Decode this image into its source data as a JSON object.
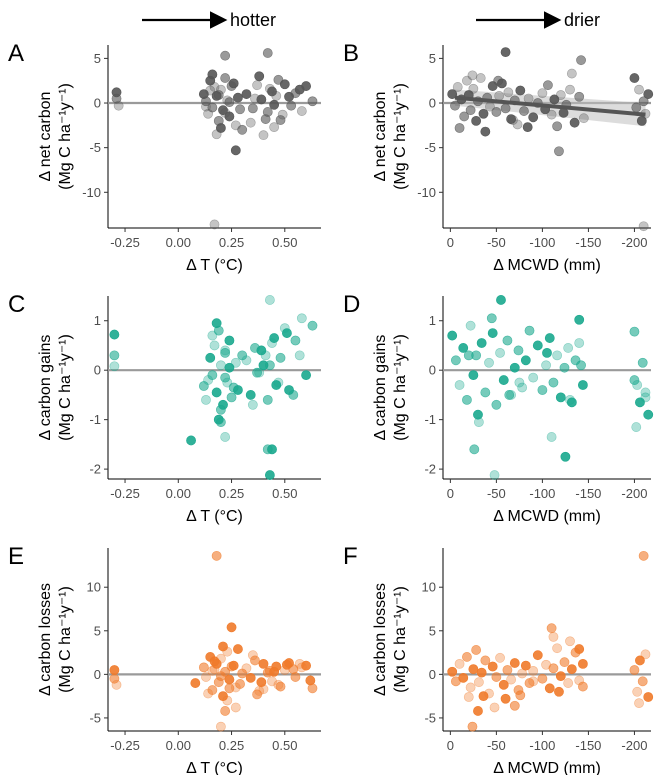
{
  "headers": {
    "left": "hotter",
    "right": "drier"
  },
  "colors": {
    "net": "#555555",
    "gains": "#1aa88e",
    "losses": "#f07a2a",
    "zero_line": "#9a9a9a",
    "trend": "#555555",
    "ribbon": "#bfbfbf"
  },
  "chart_data": [
    {
      "panel": "A",
      "type": "scatter",
      "color_key": "net",
      "xlabel": "Δ T (°C)",
      "ylabel_line1": "Δ net carbon",
      "ylabel_line2": "(Mg C ha⁻¹y⁻¹)",
      "xlim": [
        -0.33,
        0.67
      ],
      "ylim": [
        -14.0,
        6.5
      ],
      "xticks": [
        -0.25,
        0,
        0.25,
        0.5
      ],
      "xticklabels": [
        "-0.25",
        "0.00",
        "0.25",
        "0.50"
      ],
      "yticks": [
        5,
        0,
        -5,
        -10
      ],
      "yticklabels": [
        "5",
        "0",
        "-5",
        "-10"
      ],
      "zero_line": 0,
      "x": [
        -0.29,
        -0.29,
        -0.28,
        0.12,
        0.13,
        0.14,
        0.15,
        0.16,
        0.17,
        0.18,
        0.19,
        0.2,
        0.21,
        0.22,
        0.23,
        0.24,
        0.25,
        0.27,
        0.28,
        0.3,
        0.13,
        0.16,
        0.19,
        0.22,
        0.26,
        0.29,
        0.15,
        0.2,
        0.24,
        0.18,
        0.32,
        0.35,
        0.37,
        0.39,
        0.41,
        0.43,
        0.45,
        0.47,
        0.49,
        0.52,
        0.55,
        0.58,
        0.6,
        0.63,
        0.34,
        0.38,
        0.42,
        0.46,
        0.5,
        0.53,
        0.4,
        0.44,
        0.48,
        0.36,
        0.57,
        0.42,
        0.17,
        0.27,
        0.22,
        0.45
      ],
      "y": [
        1.2,
        0.5,
        -0.3,
        1.0,
        0.2,
        -1.2,
        2.5,
        -0.5,
        1.8,
        0.8,
        -2.0,
        1.5,
        -0.8,
        2.8,
        0.3,
        -1.5,
        1.9,
        -2.5,
        0.6,
        -3.0,
        -0.4,
        3.2,
        0.9,
        -1.1,
        2.2,
        -0.7,
        1.4,
        -2.8,
        0.1,
        -3.5,
        1.0,
        -0.6,
        2.0,
        0.4,
        -1.8,
        1.6,
        -0.2,
        2.6,
        -1.3,
        0.7,
        1.1,
        -0.9,
        1.9,
        0.2,
        -2.2,
        3.0,
        -1.0,
        0.8,
        2.1,
        -0.3,
        -3.6,
        1.3,
        -1.9,
        0.5,
        1.5,
        5.6,
        -13.6,
        -5.3,
        5.3,
        -2.7
      ]
    },
    {
      "panel": "B",
      "type": "scatter",
      "color_key": "net",
      "xlabel": "Δ MCWD (mm)",
      "ylabel_line1": "Δ net carbon",
      "ylabel_line2": "(Mg C ha⁻¹y⁻¹)",
      "xlim": [
        8,
        -218
      ],
      "ylim": [
        -14.0,
        6.5
      ],
      "xticks": [
        0,
        -50,
        -100,
        -150,
        -200
      ],
      "xticklabels": [
        "0",
        "-50",
        "-100",
        "-150",
        "-200"
      ],
      "yticks": [
        5,
        0,
        -5,
        -10
      ],
      "yticklabels": [
        "5",
        "0",
        "-5",
        "-10"
      ],
      "zero_line": 0,
      "trend": {
        "x": [
          -5,
          -212
        ],
        "y": [
          0.6,
          -1.3
        ],
        "band": [
          0.9,
          1.3
        ]
      },
      "x": [
        -2,
        -5,
        -8,
        -12,
        -15,
        -18,
        -20,
        -22,
        -25,
        -28,
        -30,
        -33,
        -36,
        -40,
        -43,
        -46,
        -50,
        -53,
        -56,
        -60,
        -63,
        -66,
        -70,
        -73,
        -76,
        -80,
        -85,
        -90,
        -95,
        -100,
        -103,
        -106,
        -110,
        -113,
        -116,
        -120,
        -123,
        -126,
        -130,
        -135,
        -140,
        -145,
        -200,
        -202,
        -205,
        -208,
        -210,
        -212,
        -215,
        -10,
        -24,
        -38,
        -52,
        -68,
        -84,
        -118,
        -132,
        -60,
        -142,
        -210
      ],
      "y": [
        1.0,
        -0.3,
        1.8,
        0.4,
        -1.5,
        2.5,
        0.9,
        -0.8,
        1.6,
        -2.0,
        0.2,
        2.8,
        -1.2,
        0.6,
        -0.4,
        1.9,
        -1.0,
        0.8,
        2.2,
        -0.6,
        1.2,
        -1.8,
        0.3,
        -2.4,
        1.4,
        -0.9,
        0.5,
        -1.6,
        0.0,
        1.1,
        -0.7,
        2.0,
        -1.3,
        0.4,
        -2.6,
        0.9,
        -1.1,
        -0.2,
        1.5,
        -2.2,
        0.7,
        -1.7,
        2.8,
        -0.5,
        1.5,
        -2.0,
        0.2,
        -1.2,
        1.0,
        -2.8,
        3.1,
        -3.2,
        2.5,
        -1.9,
        -2.7,
        -5.4,
        3.3,
        5.7,
        4.8,
        -13.8
      ]
    },
    {
      "panel": "C",
      "type": "scatter",
      "color_key": "gains",
      "xlabel": "Δ T (°C)",
      "ylabel_line1": "Δ carbon gains",
      "ylabel_line2": "(Mg C ha⁻¹y⁻¹)",
      "xlim": [
        -0.33,
        0.67
      ],
      "ylim": [
        -2.2,
        1.5
      ],
      "xticks": [
        -0.25,
        0,
        0.25,
        0.5
      ],
      "xticklabels": [
        "-0.25",
        "0.00",
        "0.25",
        "0.50"
      ],
      "yticks": [
        1,
        0,
        -1,
        -2
      ],
      "yticklabels": [
        "1",
        "0",
        "-1",
        "-2"
      ],
      "zero_line": 0,
      "x": [
        -0.3,
        -0.3,
        -0.3,
        0.06,
        0.12,
        0.13,
        0.15,
        0.16,
        0.17,
        0.18,
        0.19,
        0.2,
        0.21,
        0.22,
        0.23,
        0.24,
        0.25,
        0.27,
        0.28,
        0.3,
        0.14,
        0.18,
        0.2,
        0.22,
        0.24,
        0.26,
        0.16,
        0.19,
        0.22,
        0.32,
        0.34,
        0.36,
        0.38,
        0.4,
        0.42,
        0.44,
        0.46,
        0.48,
        0.5,
        0.52,
        0.55,
        0.57,
        0.6,
        0.63,
        0.35,
        0.39,
        0.43,
        0.47,
        0.51,
        0.54,
        0.41,
        0.45,
        0.37,
        0.58,
        0.44,
        0.2,
        0.43,
        0.43,
        0.42,
        0.22
      ],
      "y": [
        0.72,
        0.3,
        0.08,
        -1.42,
        -0.32,
        -0.6,
        0.25,
        -0.1,
        0.5,
        -0.45,
        0.8,
        0.1,
        -0.7,
        0.35,
        -0.25,
        0.6,
        -0.55,
        0.15,
        -0.4,
        0.3,
        -0.2,
        0.95,
        -0.8,
        0.4,
        0.05,
        -0.35,
        0.7,
        -1.0,
        -0.15,
        0.2,
        -0.5,
        0.45,
        -0.05,
        0.1,
        -0.6,
        0.55,
        -0.3,
        0.25,
        0.85,
        -0.4,
        0.6,
        0.3,
        -0.1,
        0.9,
        -0.7,
        0.4,
        0.1,
        -0.25,
        0.75,
        -0.5,
        0.3,
        0.65,
        -0.05,
        1.05,
        -1.6,
        -1.05,
        1.42,
        -2.12,
        -1.6,
        -1.35
      ]
    },
    {
      "panel": "D",
      "type": "scatter",
      "color_key": "gains",
      "xlabel": "Δ MCWD (mm)",
      "ylabel_line1": "Δ carbon gains",
      "ylabel_line2": "(Mg C ha⁻¹y⁻¹)",
      "xlim": [
        8,
        -218
      ],
      "ylim": [
        -2.2,
        1.5
      ],
      "xticks": [
        0,
        -50,
        -100,
        -150,
        -200
      ],
      "xticklabels": [
        "0",
        "-50",
        "-100",
        "-150",
        "-200"
      ],
      "yticks": [
        1,
        0,
        -1,
        -2
      ],
      "yticklabels": [
        "1",
        "0",
        "-1",
        "-2"
      ],
      "zero_line": 0,
      "x": [
        -2,
        -6,
        -10,
        -14,
        -18,
        -22,
        -25,
        -28,
        -31,
        -34,
        -38,
        -42,
        -46,
        -50,
        -54,
        -58,
        -62,
        -66,
        -70,
        -74,
        -78,
        -82,
        -86,
        -90,
        -95,
        -100,
        -104,
        -108,
        -112,
        -116,
        -120,
        -124,
        -128,
        -132,
        -136,
        -140,
        -144,
        -200,
        -203,
        -206,
        -209,
        -212,
        -215,
        -26,
        -48,
        -55,
        -64,
        -110,
        -125,
        -142,
        -202,
        -30,
        -45,
        -130,
        -140,
        -20,
        -75,
        -105,
        -200,
        -212
      ],
      "y": [
        0.7,
        0.2,
        -0.3,
        0.45,
        -0.6,
        0.9,
        -0.1,
        0.3,
        -1.05,
        0.55,
        -0.45,
        0.15,
        0.75,
        -0.7,
        0.35,
        -0.2,
        0.6,
        -0.5,
        0.05,
        0.4,
        -0.35,
        0.2,
        0.8,
        -0.15,
        0.5,
        -0.4,
        0.1,
        0.65,
        -0.25,
        0.3,
        -0.55,
        0.05,
        0.45,
        -0.65,
        0.2,
        0.55,
        -0.3,
        0.78,
        -0.3,
        -0.65,
        0.15,
        -0.45,
        -0.9,
        -1.6,
        -2.12,
        1.42,
        -0.5,
        -1.35,
        -1.75,
        0.1,
        -1.15,
        -0.9,
        1.05,
        -0.6,
        1.02,
        0.3,
        -0.25,
        0.35,
        -0.2,
        -0.55
      ]
    },
    {
      "panel": "E",
      "type": "scatter",
      "color_key": "losses",
      "xlabel": "Δ T (°C)",
      "ylabel_line1": "Δ carbon losses",
      "ylabel_line2": "(Mg C ha⁻¹y⁻¹)",
      "xlim": [
        -0.33,
        0.67
      ],
      "ylim": [
        -6.5,
        14.5
      ],
      "xticks": [
        -0.25,
        0,
        0.25,
        0.5
      ],
      "xticklabels": [
        "-0.25",
        "0.00",
        "0.25",
        "0.50"
      ],
      "yticks": [
        10,
        5,
        0,
        -5
      ],
      "yticklabels": [
        "10",
        "5",
        "0",
        "-5"
      ],
      "zero_line": 0,
      "x": [
        -0.3,
        -0.3,
        -0.29,
        0.08,
        0.12,
        0.13,
        0.15,
        0.16,
        0.17,
        0.18,
        0.19,
        0.2,
        0.21,
        0.22,
        0.23,
        0.24,
        0.25,
        0.27,
        0.28,
        0.3,
        0.14,
        0.17,
        0.2,
        0.23,
        0.26,
        0.29,
        0.16,
        0.21,
        0.24,
        0.32,
        0.34,
        0.36,
        0.38,
        0.4,
        0.42,
        0.44,
        0.46,
        0.48,
        0.5,
        0.52,
        0.55,
        0.58,
        0.6,
        0.63,
        0.35,
        0.39,
        0.43,
        0.47,
        0.51,
        0.54,
        0.4,
        0.45,
        0.37,
        0.57,
        0.62,
        0.18,
        0.2,
        0.25,
        0.22,
        0.27
      ],
      "y": [
        0.5,
        -0.5,
        -1.2,
        -1.0,
        0.8,
        -0.3,
        2.0,
        -1.8,
        0.6,
        1.2,
        -0.9,
        1.8,
        -2.5,
        0.3,
        2.6,
        -0.6,
        0.9,
        -1.5,
        2.9,
        0.1,
        -2.2,
        1.5,
        -0.2,
        -3.0,
        1.0,
        -1.1,
        0.4,
        3.2,
        -1.6,
        0.7,
        -0.4,
        1.6,
        -1.9,
        1.2,
        0.2,
        -0.8,
        0.9,
        -1.4,
        0.5,
        1.3,
        -0.3,
        0.8,
        1.0,
        -1.6,
        2.2,
        -0.9,
        0.4,
        -1.2,
        1.1,
        0.6,
        -1.7,
        0.3,
        -2.3,
        1.2,
        -0.7,
        13.6,
        -6.0,
        5.4,
        -4.2,
        -3.8
      ]
    },
    {
      "panel": "F",
      "type": "scatter",
      "color_key": "losses",
      "xlabel": "Δ MCWD (mm)",
      "ylabel_line1": "Δ carbon losses",
      "ylabel_line2": "(Mg C ha⁻¹y⁻¹)",
      "xlim": [
        8,
        -218
      ],
      "ylim": [
        -6.5,
        14.5
      ],
      "xticks": [
        0,
        -50,
        -100,
        -150,
        -200
      ],
      "xticklabels": [
        "0",
        "-50",
        "-100",
        "-150",
        "-200"
      ],
      "yticks": [
        10,
        5,
        0,
        -5
      ],
      "yticklabels": [
        "10",
        "5",
        "0",
        "-5"
      ],
      "zero_line": 0,
      "x": [
        -2,
        -6,
        -10,
        -14,
        -18,
        -22,
        -25,
        -28,
        -31,
        -34,
        -38,
        -42,
        -46,
        -50,
        -54,
        -58,
        -62,
        -66,
        -70,
        -74,
        -78,
        -82,
        -86,
        -90,
        -95,
        -100,
        -104,
        -108,
        -112,
        -116,
        -120,
        -124,
        -128,
        -132,
        -136,
        -140,
        -144,
        -200,
        -203,
        -206,
        -209,
        -212,
        -215,
        -24,
        -48,
        -60,
        -110,
        -130,
        -140,
        -210,
        -20,
        -36,
        -76,
        -90,
        -118,
        -144,
        -205,
        -30,
        -70,
        -112
      ],
      "y": [
        0.3,
        -0.8,
        1.2,
        -0.4,
        2.0,
        -1.5,
        0.6,
        2.8,
        -0.9,
        0.2,
        1.6,
        -2.2,
        0.9,
        -0.3,
        1.9,
        -1.2,
        0.5,
        -0.6,
        1.3,
        -1.8,
        0.1,
        1.0,
        -1.0,
        0.4,
        2.2,
        -0.5,
        1.1,
        -1.6,
        0.7,
        3.0,
        -0.2,
        1.4,
        -1.0,
        0.6,
        2.5,
        -0.7,
        1.2,
        0.5,
        -2.0,
        1.6,
        -0.8,
        2.3,
        -2.6,
        -6.0,
        -3.8,
        -2.8,
        5.3,
        3.8,
        2.9,
        13.6,
        -2.6,
        -2.5,
        -2.4,
        -0.8,
        -2.0,
        -1.4,
        -3.3,
        -4.2,
        -3.6,
        4.3
      ]
    }
  ]
}
